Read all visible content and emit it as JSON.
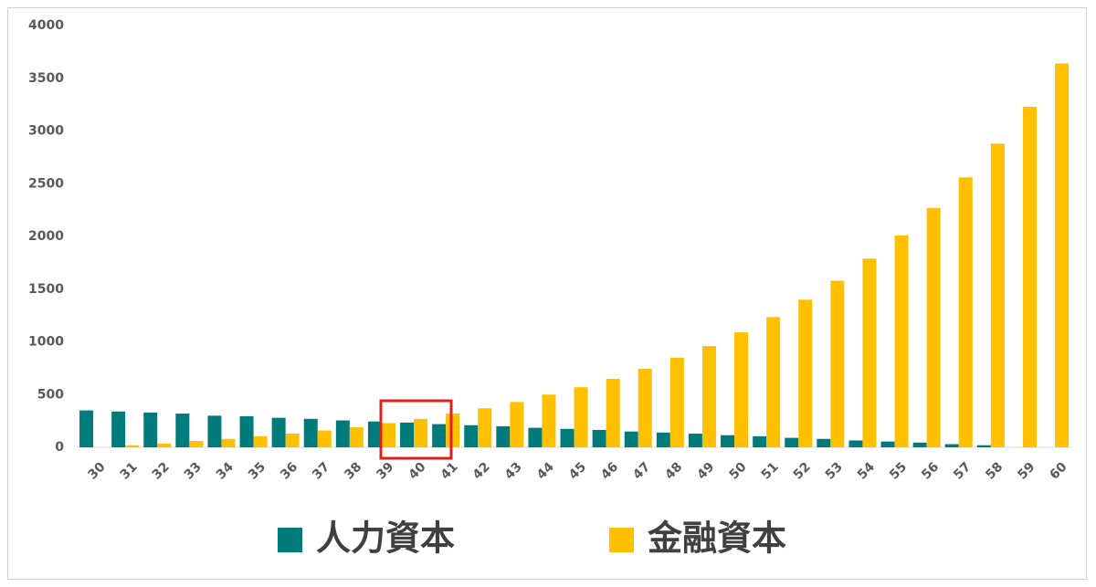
{
  "chart_data": {
    "type": "bar",
    "categories": [
      "30",
      "31",
      "32",
      "33",
      "34",
      "35",
      "36",
      "37",
      "38",
      "39",
      "40",
      "41",
      "42",
      "43",
      "44",
      "45",
      "46",
      "47",
      "48",
      "49",
      "50",
      "51",
      "52",
      "53",
      "54",
      "55",
      "56",
      "57",
      "58",
      "59",
      "60"
    ],
    "series": [
      {
        "name": "人力資本",
        "color": "#007b7b",
        "values": [
          350,
          340,
          330,
          320,
          300,
          295,
          280,
          270,
          255,
          245,
          235,
          220,
          210,
          200,
          185,
          175,
          165,
          150,
          140,
          130,
          115,
          105,
          90,
          80,
          65,
          55,
          45,
          30,
          20,
          0,
          0
        ]
      },
      {
        "name": "金融資本",
        "color": "#ffc000",
        "values": [
          0,
          20,
          35,
          60,
          80,
          105,
          130,
          160,
          190,
          230,
          270,
          320,
          370,
          430,
          500,
          570,
          650,
          745,
          850,
          960,
          1090,
          1235,
          1400,
          1580,
          1790,
          2010,
          2270,
          2560,
          2880,
          3230,
          3640
        ]
      }
    ],
    "ylim": [
      0,
      4000
    ],
    "yticks": [
      0,
      500,
      1000,
      1500,
      2000,
      2500,
      3000,
      3500,
      4000
    ],
    "grid": false,
    "legend": "bottom"
  }
}
